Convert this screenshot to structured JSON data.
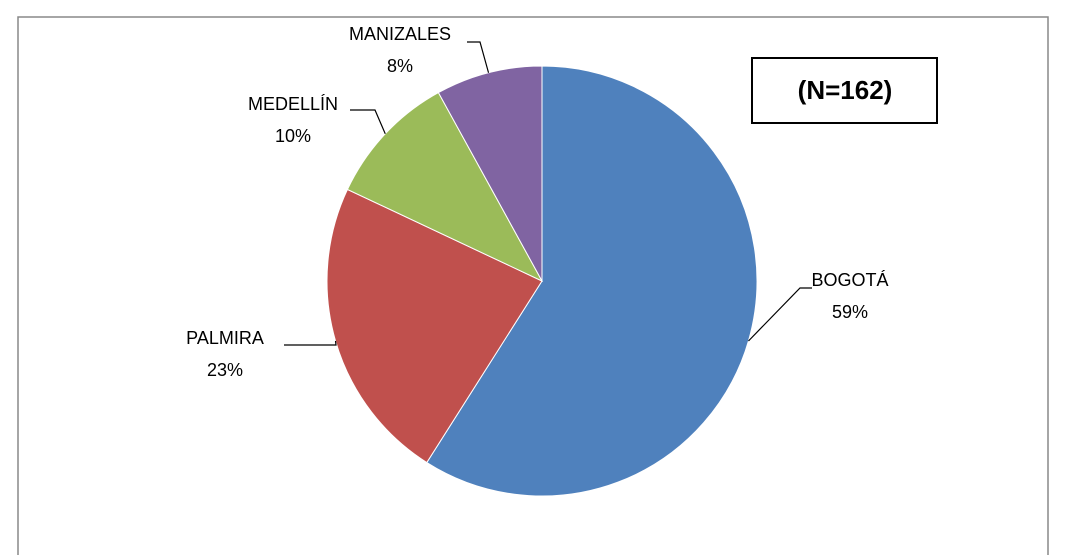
{
  "chart_data": {
    "type": "pie",
    "categories": [
      "BOGOTÁ",
      "PALMIRA",
      "MEDELLÍN",
      "MANIZALES"
    ],
    "values": [
      59,
      23,
      10,
      8
    ],
    "value_labels": [
      "59%",
      "23%",
      "10%",
      "8%"
    ],
    "colors": [
      "#4f81bd",
      "#c0504d",
      "#9bbb59",
      "#8064a2"
    ],
    "annotation": "(N=162)"
  }
}
